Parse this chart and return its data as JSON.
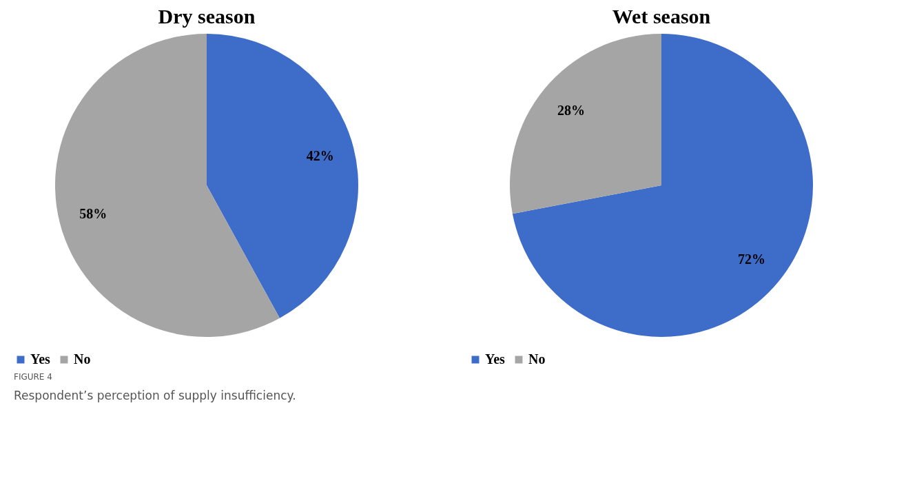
{
  "chart_data": [
    {
      "type": "pie",
      "title": "Dry season",
      "categories": [
        "Yes",
        "No"
      ],
      "values": [
        42,
        58
      ],
      "colors": [
        "#3d6cc9",
        "#a5a5a5"
      ],
      "value_labels": [
        "42%",
        "58%"
      ],
      "legend": "bottom",
      "annotations": [
        "FIGURE 4",
        "Respondent’s perception of supply insufficiency."
      ]
    },
    {
      "type": "pie",
      "title": "Wet season",
      "categories": [
        "Yes",
        "No"
      ],
      "values": [
        72,
        28
      ],
      "colors": [
        "#3d6cc9",
        "#a5a5a5"
      ],
      "value_labels": [
        "72%",
        "28%"
      ],
      "legend": "bottom"
    }
  ]
}
